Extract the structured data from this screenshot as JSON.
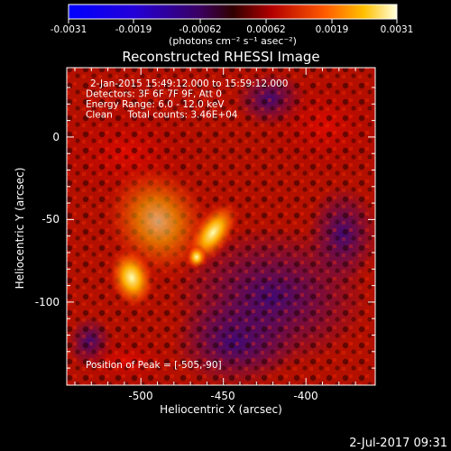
{
  "colorbar": {
    "ticks": [
      "-0.0031",
      "-0.0019",
      "-0.00062",
      "0.00062",
      "0.0019",
      "0.0031"
    ],
    "units_label": "(photons cm⁻² s⁻¹ asec⁻²)"
  },
  "plot": {
    "title": "Reconstructed RHESSI Image",
    "info": [
      "2-Jan-2015 15:49:12.000 to 15:59:12.000",
      "Detectors: 3F 6F 7F 9F, Att 0",
      "Energy Range: 6.0 - 12.0 keV",
      "Clean     Total counts: 3.46E+04"
    ],
    "peak": "Position of Peak = [-505,-90]",
    "xlabel": "Heliocentric X (arcsec)",
    "ylabel": "Heliocentric Y (arcsec)",
    "xticks": [
      "-500",
      "-450",
      "-400"
    ],
    "yticks": [
      "0",
      "-50",
      "-100"
    ]
  },
  "footer": {
    "date": "2-Jul-2017 09:31"
  },
  "colors": {
    "background": "#000000",
    "text": "#ffffff",
    "axis": "#ffffff"
  }
}
